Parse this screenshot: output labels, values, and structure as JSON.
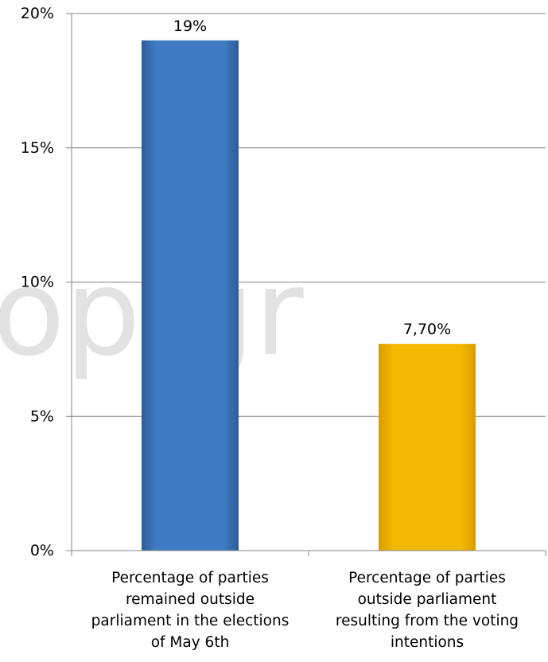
{
  "watermark": "op.gr",
  "chart_data": {
    "type": "bar",
    "categories": [
      [
        "Percentage of parties",
        "remained outside",
        "parliament in the elections",
        "of May 6th"
      ],
      [
        "Percentage of parties",
        "outside parliament",
        "resulting from the voting",
        "intentions"
      ]
    ],
    "values": [
      19,
      7.7
    ],
    "data_labels": [
      "19%",
      "7,70%"
    ],
    "bar_colors": [
      "#3f7bc4",
      "#f5b800"
    ],
    "y_ticks": [
      "0%",
      "5%",
      "10%",
      "15%",
      "20%"
    ],
    "y_tick_values": [
      0,
      5,
      10,
      15,
      20
    ],
    "ylim": [
      0,
      20
    ],
    "grid": true,
    "legend": "none"
  }
}
